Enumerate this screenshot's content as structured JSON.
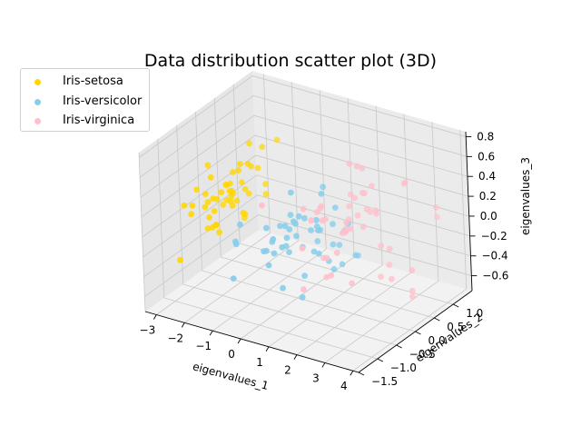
{
  "chart_data": {
    "type": "scatter",
    "title": "Data distribution scatter plot (3D)",
    "xlabel": "eigenvalues_1",
    "ylabel": "eigenvalues_2",
    "zlabel": "eigenvalues_3",
    "xlim": [
      -3.4,
      4.2
    ],
    "ylim": [
      -1.5,
      1.5
    ],
    "zlim": [
      -0.75,
      0.85
    ],
    "xticks": [
      "−3",
      "−2",
      "−1",
      "0",
      "1",
      "2",
      "3",
      "4"
    ],
    "yticks": [
      "−1.5",
      "−1.0",
      "−0.5",
      "0.0",
      "0.5",
      "1.0"
    ],
    "zticks": [
      "−0.6",
      "−0.4",
      "−0.2",
      "0.0",
      "0.2",
      "0.4",
      "0.6",
      "0.8"
    ],
    "grid": true,
    "legend_position": "upper-left",
    "series": [
      {
        "name": "Iris-setosa",
        "color": "#FFD700",
        "points": [
          [
            -2.68,
            0.32,
            -0.03
          ],
          [
            -2.71,
            -0.18,
            -0.21
          ],
          [
            -2.89,
            -0.14,
            0.02
          ],
          [
            -2.75,
            -0.32,
            0.03
          ],
          [
            -2.73,
            0.33,
            0.09
          ],
          [
            -2.28,
            0.74,
            0.17
          ],
          [
            -2.82,
            -0.09,
            0.26
          ],
          [
            -2.63,
            0.16,
            -0.02
          ],
          [
            -2.89,
            -0.58,
            0.02
          ],
          [
            -2.67,
            -0.11,
            -0.2
          ],
          [
            -2.51,
            0.65,
            -0.08
          ],
          [
            -2.61,
            0.01,
            0.1
          ],
          [
            -2.79,
            -0.24,
            -0.21
          ],
          [
            -3.23,
            -0.51,
            0.06
          ],
          [
            -2.64,
            1.18,
            -0.14
          ],
          [
            -2.39,
            1.34,
            0.28
          ],
          [
            -2.62,
            0.81,
            0.14
          ],
          [
            -2.65,
            0.31,
            0.03
          ],
          [
            -2.2,
            0.87,
            -0.12
          ],
          [
            -2.59,
            0.51,
            0.25
          ],
          [
            -2.31,
            0.39,
            -0.2
          ],
          [
            -2.54,
            0.43,
            0.21
          ],
          [
            -3.22,
            0.13,
            0.29
          ],
          [
            -2.3,
            0.1,
            0.09
          ],
          [
            -2.36,
            -0.04,
            0.21
          ],
          [
            -2.51,
            -0.15,
            -0.25
          ],
          [
            -2.47,
            0.13,
            0.09
          ],
          [
            -2.56,
            0.37,
            -0.08
          ],
          [
            -2.64,
            0.31,
            -0.12
          ],
          [
            -2.63,
            -0.19,
            0.09
          ],
          [
            -2.59,
            -0.2,
            -0.03
          ],
          [
            -2.41,
            0.41,
            -0.2
          ],
          [
            -2.65,
            0.81,
            0.37
          ],
          [
            -2.6,
            1.1,
            0.26
          ],
          [
            -2.67,
            -0.11,
            -0.2
          ],
          [
            -2.87,
            0.08,
            -0.01
          ],
          [
            -2.63,
            0.6,
            -0.32
          ],
          [
            -2.67,
            -0.11,
            -0.2
          ],
          [
            -2.98,
            -0.48,
            0.07
          ],
          [
            -2.59,
            0.23,
            -0.05
          ],
          [
            -2.77,
            0.27,
            0.09
          ],
          [
            -2.85,
            -0.94,
            -0.34
          ],
          [
            -3.0,
            -0.34,
            0.19
          ],
          [
            -2.41,
            0.19,
            0.27
          ],
          [
            -2.21,
            0.44,
            0.3
          ],
          [
            -2.71,
            -0.25,
            -0.09
          ],
          [
            -2.54,
            0.5,
            0.07
          ],
          [
            -2.84,
            -0.23,
            0.13
          ],
          [
            -2.54,
            0.58,
            -0.02
          ],
          [
            -2.7,
            0.11,
            -0.06
          ]
        ]
      },
      {
        "name": "Iris-versicolor",
        "color": "#87CEEB",
        "points": [
          [
            1.28,
            0.69,
            -0.41
          ],
          [
            0.93,
            0.32,
            -0.02
          ],
          [
            1.46,
            0.5,
            -0.34
          ],
          [
            0.18,
            -0.83,
            -0.18
          ],
          [
            1.09,
            0.07,
            -0.31
          ],
          [
            0.64,
            -0.42,
            0.04
          ],
          [
            1.1,
            0.28,
            0.17
          ],
          [
            -0.75,
            -1.0,
            0.03
          ],
          [
            1.04,
            0.23,
            -0.44
          ],
          [
            -0.01,
            -0.72,
            0.15
          ],
          [
            -0.51,
            -1.26,
            -0.25
          ],
          [
            0.51,
            -0.1,
            0.12
          ],
          [
            0.26,
            -0.55,
            -0.48
          ],
          [
            0.98,
            -0.12,
            0.08
          ],
          [
            -0.17,
            -0.25,
            0.03
          ],
          [
            0.93,
            0.47,
            -0.27
          ],
          [
            0.66,
            -0.35,
            0.22
          ],
          [
            0.23,
            -0.33,
            -0.18
          ],
          [
            0.94,
            -0.54,
            -0.52
          ],
          [
            0.04,
            -0.58,
            -0.14
          ],
          [
            1.12,
            -0.08,
            0.41
          ],
          [
            0.36,
            -0.07,
            -0.19
          ],
          [
            1.3,
            -0.33,
            -0.11
          ],
          [
            0.92,
            -0.18,
            -0.16
          ],
          [
            0.71,
            0.15,
            -0.05
          ],
          [
            0.9,
            0.33,
            -0.23
          ],
          [
            1.33,
            0.24,
            -0.37
          ],
          [
            1.56,
            0.27,
            0.05
          ],
          [
            0.81,
            -0.16,
            0.04
          ],
          [
            -0.31,
            -0.37,
            -0.11
          ],
          [
            -0.07,
            -0.7,
            -0.09
          ],
          [
            -0.19,
            -0.68,
            -0.11
          ],
          [
            0.14,
            -0.31,
            -0.05
          ],
          [
            1.38,
            -0.42,
            0.26
          ],
          [
            0.59,
            -0.48,
            0.49
          ],
          [
            0.81,
            0.19,
            0.38
          ],
          [
            1.22,
            0.41,
            -0.09
          ],
          [
            0.81,
            -0.37,
            -0.36
          ],
          [
            0.25,
            -0.27,
            0.18
          ],
          [
            0.16,
            -0.68,
            0.04
          ],
          [
            0.46,
            -0.67,
            -0.02
          ],
          [
            0.89,
            -0.03,
            0.01
          ],
          [
            0.23,
            -0.4,
            -0.1
          ],
          [
            -0.71,
            -1.01,
            0.01
          ],
          [
            0.36,
            -0.5,
            0.14
          ],
          [
            0.33,
            -0.21,
            0.08
          ],
          [
            0.38,
            -0.29,
            0.13
          ],
          [
            0.64,
            0.12,
            -0.16
          ],
          [
            -0.91,
            -0.75,
            0.12
          ],
          [
            0.3,
            -0.35,
            0.06
          ]
        ]
      },
      {
        "name": "Iris-virginica",
        "color": "#FFC0CB",
        "points": [
          [
            2.53,
            -0.01,
            0.76
          ],
          [
            1.41,
            -0.57,
            0.3
          ],
          [
            2.61,
            0.34,
            -0.11
          ],
          [
            1.97,
            -0.18,
            0.11
          ],
          [
            2.35,
            -0.04,
            0.28
          ],
          [
            3.4,
            0.55,
            -0.35
          ],
          [
            0.52,
            -1.19,
            0.55
          ],
          [
            2.93,
            0.35,
            -0.42
          ],
          [
            2.32,
            -0.24,
            -0.35
          ],
          [
            2.92,
            0.78,
            0.42
          ],
          [
            1.66,
            0.24,
            0.24
          ],
          [
            1.8,
            -0.22,
            -0.09
          ],
          [
            2.17,
            0.22,
            0.08
          ],
          [
            1.34,
            -0.78,
            0.07
          ],
          [
            1.59,
            -0.54,
            0.39
          ],
          [
            1.9,
            0.12,
            0.41
          ],
          [
            1.95,
            0.04,
            0.09
          ],
          [
            3.49,
            1.17,
            0.12
          ],
          [
            3.8,
            0.25,
            -0.44
          ],
          [
            1.3,
            -0.76,
            -0.35
          ],
          [
            2.43,
            0.38,
            0.19
          ],
          [
            1.2,
            -0.61,
            0.41
          ],
          [
            3.5,
            0.46,
            -0.58
          ],
          [
            1.39,
            -0.2,
            -0.18
          ],
          [
            2.28,
            0.33,
            0.21
          ],
          [
            2.61,
            0.56,
            -0.2
          ],
          [
            1.26,
            -0.18,
            0.18
          ],
          [
            1.29,
            -0.12,
            0.18
          ],
          [
            2.12,
            -0.21,
            0.14
          ],
          [
            2.39,
            0.46,
            -0.47
          ],
          [
            2.84,
            0.37,
            -0.29
          ],
          [
            3.23,
            1.37,
            -0.05
          ],
          [
            2.16,
            -0.22,
            0.18
          ],
          [
            1.44,
            -0.14,
            -0.37
          ],
          [
            1.78,
            -0.5,
            -0.26
          ],
          [
            3.08,
            0.69,
            0.47
          ],
          [
            2.14,
            0.14,
            0.71
          ],
          [
            1.9,
            0.05,
            0.18
          ],
          [
            1.17,
            -0.16,
            0.29
          ],
          [
            2.11,
            0.37,
            0.21
          ],
          [
            2.31,
            0.18,
            0.44
          ],
          [
            1.92,
            0.41,
            0.35
          ],
          [
            1.41,
            -0.57,
            0.3
          ],
          [
            2.56,
            0.28,
            0.26
          ],
          [
            2.42,
            0.3,
            0.49
          ],
          [
            1.94,
            0.19,
            0.36
          ],
          [
            1.53,
            -0.38,
            -0.12
          ],
          [
            1.76,
            0.08,
            0.13
          ],
          [
            1.9,
            0.12,
            0.72
          ],
          [
            1.39,
            -0.28,
            0.36
          ]
        ]
      }
    ]
  }
}
